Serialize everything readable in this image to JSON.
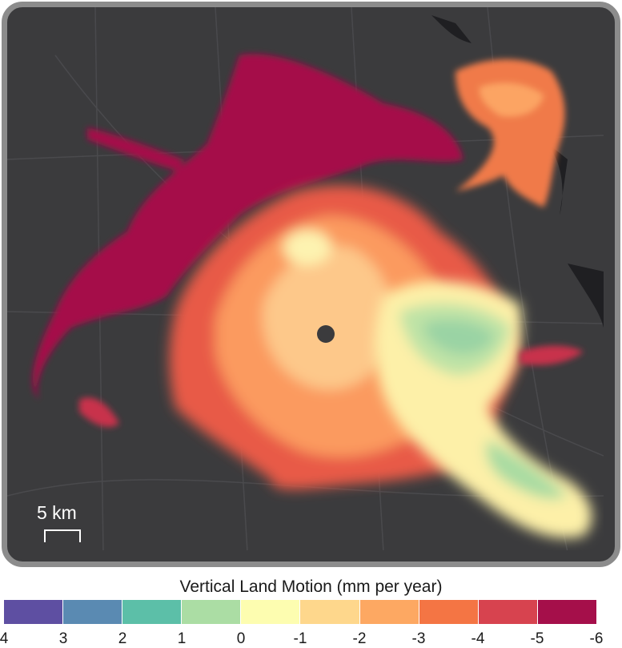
{
  "legend": {
    "title": "Vertical Land Motion (mm per year)",
    "ticks": [
      "4",
      "3",
      "2",
      "1",
      "0",
      "-1",
      "-2",
      "-3",
      "-4",
      "-5",
      "-6"
    ],
    "colors": [
      "#5e4fa2",
      "#5a8ab2",
      "#5cbfa8",
      "#abdda4",
      "#fdfdb0",
      "#fed78c",
      "#fda862",
      "#f47544",
      "#d7434f",
      "#a50f4a"
    ]
  },
  "scale_bar": {
    "label": "5 km"
  },
  "map": {
    "background_color": "#3b3b3d",
    "frame_color": "#8c8c8c"
  }
}
